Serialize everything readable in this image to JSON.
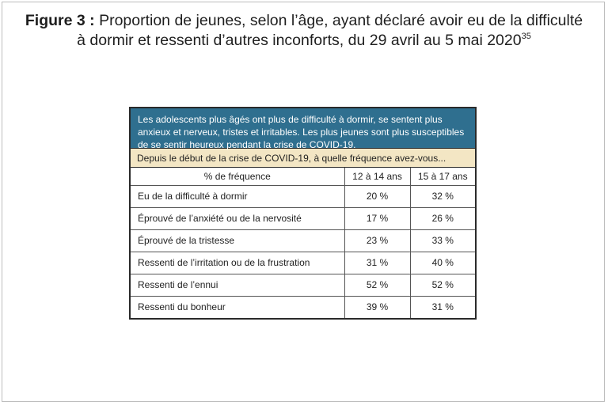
{
  "caption": {
    "figure_label": "Figure 3 :",
    "title_line1": "Proportion de jeunes, selon l’âge, ayant déclaré avoir eu de la difficulté",
    "title_line2": "à dormir et ressenti d’autres inconforts, du 29 avril au 5 mai 2020",
    "footnote": "35"
  },
  "summary": "Les adolescents plus âgés ont plus de difficulté à dormir, se sentent plus anxieux et nerveux, tristes et irritables. Les plus jeunes sont plus susceptibles de se sentir heureux pendant la crise de COVID-19.",
  "question": "Depuis le début de la crise de COVID-19, à quelle fréquence avez-vous...",
  "table": {
    "headers": [
      "% de fréquence",
      "12 à 14 ans",
      "15 à 17 ans"
    ],
    "rows": [
      [
        "Eu de la difficulté à dormir",
        "20 %",
        "32 %"
      ],
      [
        "Éprouvé de l’anxiété ou de la nervosité",
        "17 %",
        "26 %"
      ],
      [
        "Éprouvé de la tristesse",
        "23 %",
        "33 %"
      ],
      [
        "Ressenti de l’irritation ou de la frustration",
        "31 %",
        "40 %"
      ],
      [
        "Ressenti de l’ennui",
        "52 %",
        "52 %"
      ],
      [
        "Ressenti du bonheur",
        "39 %",
        "31 %"
      ]
    ]
  },
  "colors": {
    "header_blue": "#2f6f8f",
    "question_beige": "#f3e6c4"
  }
}
